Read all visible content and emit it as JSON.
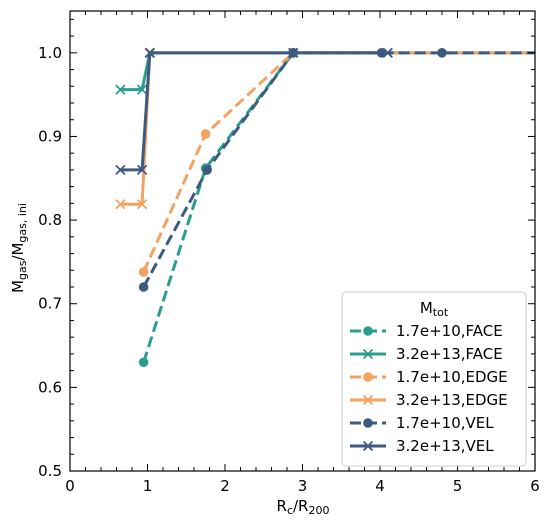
{
  "chart_data": {
    "type": "line",
    "xlabel": {
      "main": "R",
      "sub": "c",
      "slash": "/R",
      "sub2": "200"
    },
    "ylabel": {
      "main": "M",
      "sub": "gas",
      "slash": "/M",
      "sub2": "gas, ini"
    },
    "xlim": [
      0,
      6
    ],
    "ylim": [
      0.5,
      1.05
    ],
    "x_ticks": [
      "0",
      "1",
      "2",
      "3",
      "4",
      "5",
      "6"
    ],
    "y_ticks": [
      "0.5",
      "0.6",
      "0.7",
      "0.8",
      "0.9",
      "1.0"
    ],
    "grid": false,
    "legend": {
      "title_main": "M",
      "title_sub": "tot",
      "placement": "lower-right"
    },
    "series": [
      {
        "name": "1.7e+10,FACE",
        "color": "#2a9d8f",
        "dash": true,
        "marker": "circle",
        "x": [
          0.95,
          1.75,
          2.88
        ],
        "y": [
          0.63,
          0.862,
          1.0
        ],
        "extend_to": 6
      },
      {
        "name": "3.2e+13,FACE",
        "color": "#2a9d8f",
        "dash": false,
        "marker": "x",
        "x": [
          0.65,
          0.93,
          1.03
        ],
        "y": [
          0.956,
          0.956,
          1.0
        ],
        "extend_to": 4.1
      },
      {
        "name": "1.7e+10,EDGE",
        "color": "#f4a261",
        "dash": true,
        "marker": "circle",
        "x": [
          0.95,
          1.75,
          2.88
        ],
        "y": [
          0.738,
          0.903,
          1.0
        ],
        "extend_to": 6
      },
      {
        "name": "3.2e+13,EDGE",
        "color": "#f4a261",
        "dash": false,
        "marker": "x",
        "x": [
          0.65,
          0.93,
          1.03
        ],
        "y": [
          0.819,
          0.819,
          1.0
        ],
        "extend_to": 4.1
      },
      {
        "name": "1.7e+10,VEL",
        "color": "#3d5a80",
        "dash": true,
        "marker": "circle",
        "x": [
          0.95,
          1.77,
          2.88,
          4.02,
          4.8
        ],
        "y": [
          0.72,
          0.86,
          1.0,
          1.0,
          1.0
        ],
        "extend_to": 6
      },
      {
        "name": "3.2e+13,VEL",
        "color": "#3d5a80",
        "dash": false,
        "marker": "x",
        "x": [
          0.65,
          0.93,
          1.03,
          2.88,
          4.1
        ],
        "y": [
          0.86,
          0.86,
          1.0,
          1.0,
          1.0
        ],
        "extend_to": 4.1
      }
    ]
  }
}
